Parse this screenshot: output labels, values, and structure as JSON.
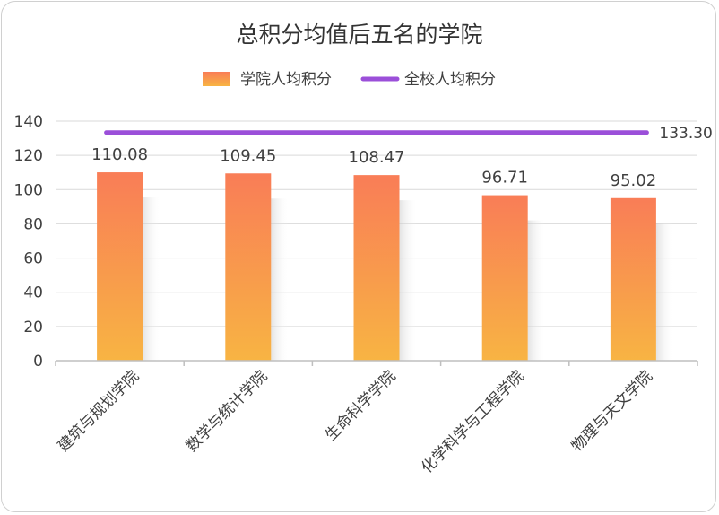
{
  "chart_data": {
    "type": "bar",
    "title": "总积分均值后五名的学院",
    "categories": [
      "建筑与规划学院",
      "数学与统计学院",
      "生命科学学院",
      "化学科学与工程学院",
      "物理与天文学院"
    ],
    "series": [
      {
        "name": "学院人均积分",
        "type": "bar",
        "values": [
          110.08,
          109.45,
          108.47,
          96.71,
          95.02
        ],
        "labels": [
          "110.08",
          "109.45",
          "108.47",
          "96.71",
          "95.02"
        ]
      },
      {
        "name": "全校人均积分",
        "type": "line",
        "value": 133.3,
        "label": "133.30"
      }
    ],
    "ylim": [
      0,
      140
    ],
    "yticks": [
      "0",
      "20",
      "40",
      "60",
      "80",
      "100",
      "120",
      "140"
    ],
    "grid": true,
    "legend": "top-center",
    "colors": {
      "bar_top": "#f97d57",
      "bar_bottom": "#f8b443",
      "line": "#9b4fd9",
      "grid": "#d9d9d9"
    }
  }
}
